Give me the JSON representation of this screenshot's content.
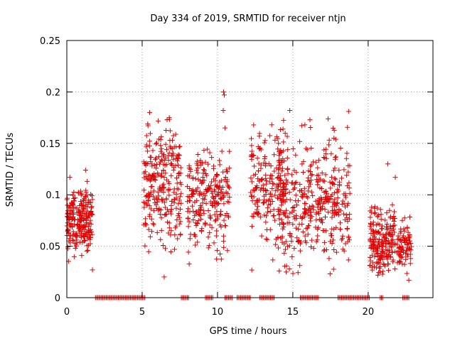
{
  "chart_data": {
    "type": "scatter",
    "title": "Day 334 of 2019, SRMTID for receiver ntjn",
    "xlabel": "GPS time / hours",
    "ylabel": "SRMTID / TECUs",
    "xlim": [
      0,
      24.3
    ],
    "ylim": [
      0,
      0.25
    ],
    "xticks": [
      0,
      5,
      10,
      15,
      20
    ],
    "yticks": [
      0,
      0.05,
      0.1,
      0.15,
      0.2,
      0.25
    ],
    "ytick_labels": [
      "0",
      "0.05",
      "0.1",
      "0.15",
      "0.2",
      "0.25"
    ],
    "grid": true,
    "marker": "plus",
    "color": "#e00000",
    "series": [
      {
        "name": "SRMTID",
        "clusters": [
          {
            "x_range": [
              0.0,
              1.7
            ],
            "y_mean": 0.075,
            "y_sd": 0.016,
            "count": 230
          },
          {
            "x_range": [
              5.1,
              7.6
            ],
            "y_mean": 0.105,
            "y_sd": 0.03,
            "count": 260
          },
          {
            "x_range": [
              8.0,
              10.8
            ],
            "y_mean": 0.095,
            "y_sd": 0.022,
            "count": 240
          },
          {
            "x_range": [
              12.2,
              14.5
            ],
            "y_mean": 0.11,
            "y_sd": 0.025,
            "count": 180
          },
          {
            "x_range": [
              14.0,
              16.4
            ],
            "y_mean": 0.095,
            "y_sd": 0.03,
            "count": 200
          },
          {
            "x_range": [
              16.5,
              18.8
            ],
            "y_mean": 0.09,
            "y_sd": 0.03,
            "count": 200
          },
          {
            "x_range": [
              20.1,
              21.8
            ],
            "y_mean": 0.055,
            "y_sd": 0.016,
            "count": 200
          },
          {
            "x_range": [
              21.9,
              22.9
            ],
            "y_mean": 0.05,
            "y_sd": 0.01,
            "count": 80
          }
        ],
        "extra_points": [
          [
            10.4,
            0.2
          ],
          [
            10.45,
            0.197
          ],
          [
            10.38,
            0.182
          ],
          [
            10.5,
            0.165
          ],
          [
            5.5,
            0.18
          ],
          [
            14.8,
            0.182
          ],
          [
            18.7,
            0.181
          ],
          [
            6.8,
            0.175
          ],
          [
            13.6,
            0.168
          ],
          [
            15.8,
            0.168
          ],
          [
            21.3,
            0.13
          ],
          [
            21.8,
            0.117
          ],
          [
            1.35,
            0.113
          ],
          [
            0.2,
            0.117
          ],
          [
            22.7,
            0.017
          ],
          [
            1.7,
            0.027
          ],
          [
            14.1,
            0.026
          ],
          [
            20.8,
            0.03
          ]
        ],
        "zero_runs": [
          [
            1.9,
            5.2
          ],
          [
            7.6,
            8.1
          ],
          [
            9.2,
            9.7
          ],
          [
            10.5,
            11.0
          ],
          [
            11.3,
            12.2
          ],
          [
            12.8,
            13.8
          ],
          [
            15.5,
            16.7
          ],
          [
            18.0,
            20.1
          ],
          [
            20.8,
            21.0
          ],
          [
            22.3,
            22.7
          ]
        ]
      }
    ]
  }
}
